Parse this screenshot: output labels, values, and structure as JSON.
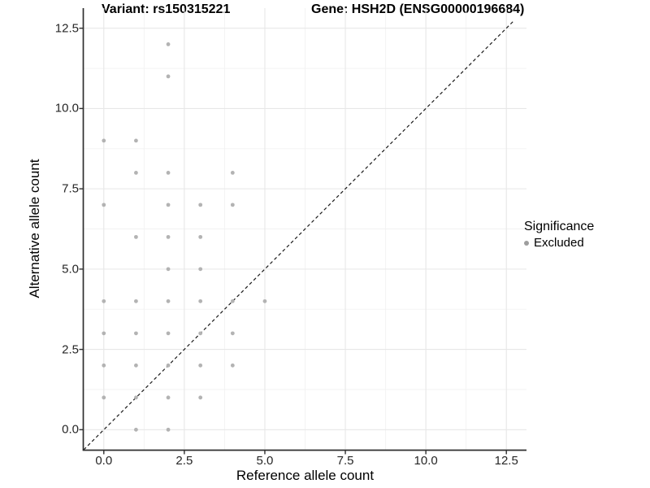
{
  "titles": {
    "variant": "Variant: rs150315221",
    "gene": "Gene: HSH2D (ENSG00000196684)"
  },
  "axes": {
    "x_label": "Reference allele count",
    "y_label": "Alternative allele count",
    "x_ticks": [
      "0.0",
      "2.5",
      "5.0",
      "7.5",
      "10.0",
      "12.5"
    ],
    "y_ticks": [
      "0.0",
      "2.5",
      "5.0",
      "7.5",
      "10.0",
      "12.5"
    ]
  },
  "legend": {
    "title": "Significance",
    "items": [
      {
        "label": "Excluded",
        "color": "#9e9e9e"
      }
    ]
  },
  "colors": {
    "point": "#b3b3b3",
    "legend_dot": "#9e9e9e",
    "diagonal_line": "#1a1a1a",
    "axis_line": "#2f2f2f",
    "major_grid": "#e7e7e7",
    "minor_grid": "#f2f2f2"
  },
  "chart_data": {
    "type": "scatter",
    "title": "Variant: rs150315221 | Gene: HSH2D (ENSG00000196684)",
    "xlabel": "Reference allele count",
    "ylabel": "Alternative allele count",
    "xlim": [
      -0.625,
      13.125
    ],
    "ylim": [
      -0.625,
      13.125
    ],
    "tick_values": [
      0,
      2.5,
      5,
      7.5,
      10,
      12.5
    ],
    "minor_tick_values": [
      1.25,
      3.75,
      6.25,
      8.75,
      11.25
    ],
    "grid": true,
    "legend_position": "right",
    "reference_line": {
      "type": "identity y=x",
      "style": "dashed",
      "from": -0.625,
      "to": 12.72
    },
    "series": [
      {
        "name": "Excluded",
        "color": "#b3b3b3",
        "points": [
          [
            2,
            12
          ],
          [
            2,
            11
          ],
          [
            0,
            9
          ],
          [
            1,
            9
          ],
          [
            1,
            8
          ],
          [
            2,
            8
          ],
          [
            4,
            8
          ],
          [
            0,
            7
          ],
          [
            2,
            7
          ],
          [
            3,
            7
          ],
          [
            4,
            7
          ],
          [
            1,
            6
          ],
          [
            2,
            6
          ],
          [
            3,
            6
          ],
          [
            2,
            5
          ],
          [
            3,
            5
          ],
          [
            0,
            4
          ],
          [
            1,
            4
          ],
          [
            2,
            4
          ],
          [
            3,
            4
          ],
          [
            4,
            4
          ],
          [
            5,
            4
          ],
          [
            0,
            3
          ],
          [
            1,
            3
          ],
          [
            2,
            3
          ],
          [
            3,
            3
          ],
          [
            4,
            3
          ],
          [
            0,
            2
          ],
          [
            1,
            2
          ],
          [
            2,
            2
          ],
          [
            3,
            2
          ],
          [
            4,
            2
          ],
          [
            0,
            1
          ],
          [
            1,
            1
          ],
          [
            2,
            1
          ],
          [
            3,
            1
          ],
          [
            1,
            0
          ],
          [
            2,
            0
          ]
        ]
      }
    ]
  }
}
